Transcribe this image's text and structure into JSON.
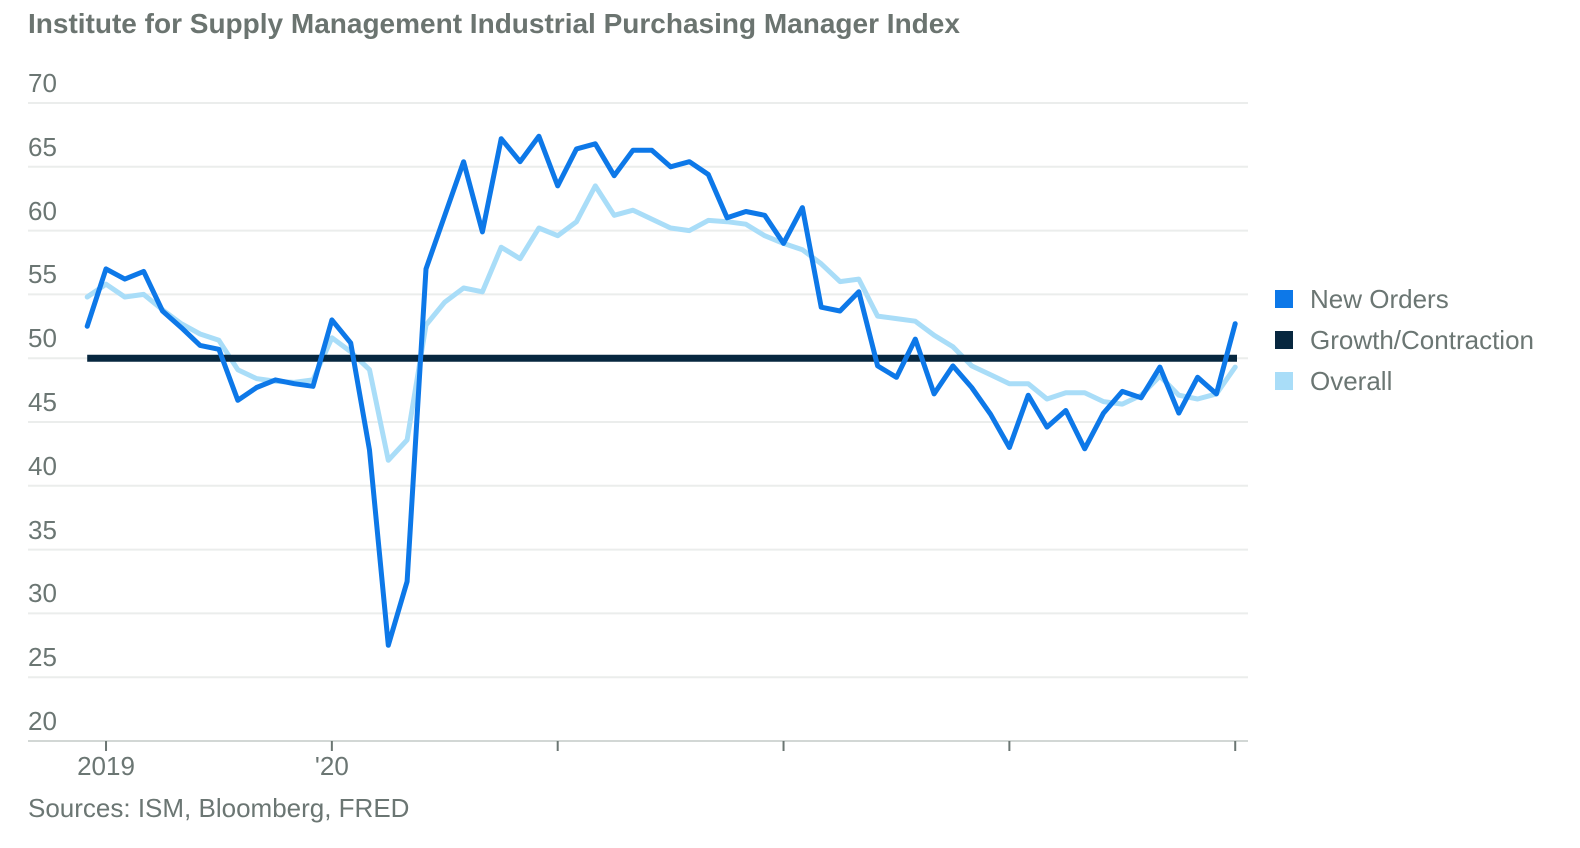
{
  "title": "Institute for Supply Management Industrial Purchasing Manager Index",
  "source_note": "Sources: ISM, Bloomberg, FRED",
  "colors": {
    "new_orders": "#0d78e8",
    "growth_contraction": "#07273f",
    "overall": "#a9ddf8",
    "text": "#6b7673",
    "gridline": "#ebedec",
    "axis_line": "#d2d7d5",
    "tick": "#6b7673",
    "background": "#ffffff"
  },
  "legend": [
    {
      "label": "New Orders",
      "color": "#0d78e8"
    },
    {
      "label": "Growth/Contraction",
      "color": "#07273f"
    },
    {
      "label": "Overall",
      "color": "#a9ddf8"
    }
  ],
  "chart_data": {
    "type": "line",
    "title": "Institute for Supply Management Industrial Purchasing Manager Index",
    "x_unit": "month",
    "x_start": "2018-12",
    "x_end": "2024-01",
    "x_tick_labels": [
      "2019",
      "'20",
      "",
      "",
      "",
      ""
    ],
    "ylim": [
      20,
      70
    ],
    "y_ticks": [
      70,
      65,
      60,
      55,
      50,
      45,
      40,
      35,
      30,
      25,
      20
    ],
    "gridlines": true,
    "legend_position": "right",
    "series": [
      {
        "name": "New Orders",
        "type": "line",
        "values": [
          52.5,
          57.0,
          56.2,
          56.8,
          53.7,
          52.4,
          51.0,
          50.7,
          46.7,
          47.7,
          48.3,
          48.0,
          47.8,
          53.0,
          51.2,
          42.8,
          27.5,
          32.5,
          57.0,
          61.2,
          65.4,
          59.9,
          67.2,
          65.4,
          67.4,
          63.5,
          66.4,
          66.8,
          64.3,
          66.3,
          66.3,
          65.0,
          65.4,
          64.4,
          61.0,
          61.5,
          61.2,
          59.0,
          61.8,
          54.0,
          53.7,
          55.2,
          49.4,
          48.5,
          51.5,
          47.2,
          49.4,
          47.7,
          45.6,
          43.0,
          47.1,
          44.6,
          45.9,
          42.9,
          45.7,
          47.4,
          46.9,
          49.3,
          45.7,
          48.5,
          47.2,
          52.7
        ]
      },
      {
        "name": "Growth/Contraction",
        "type": "threshold",
        "value": 50
      },
      {
        "name": "Overall",
        "type": "line",
        "values": [
          54.8,
          55.8,
          54.8,
          55.0,
          53.8,
          52.7,
          51.9,
          51.4,
          49.1,
          48.4,
          48.2,
          48.1,
          48.3,
          51.6,
          50.5,
          49.1,
          42.0,
          43.6,
          52.6,
          54.4,
          55.5,
          55.2,
          58.7,
          57.8,
          60.2,
          59.6,
          60.7,
          63.5,
          61.2,
          61.6,
          60.9,
          60.2,
          60.0,
          60.8,
          60.7,
          60.5,
          59.6,
          59.0,
          58.5,
          57.4,
          56.0,
          56.2,
          53.3,
          53.1,
          52.9,
          51.8,
          50.9,
          49.4,
          48.7,
          48.0,
          48.0,
          46.8,
          47.3,
          47.3,
          46.6,
          46.4,
          47.1,
          48.6,
          47.1,
          46.8,
          47.2,
          49.3
        ]
      }
    ]
  }
}
